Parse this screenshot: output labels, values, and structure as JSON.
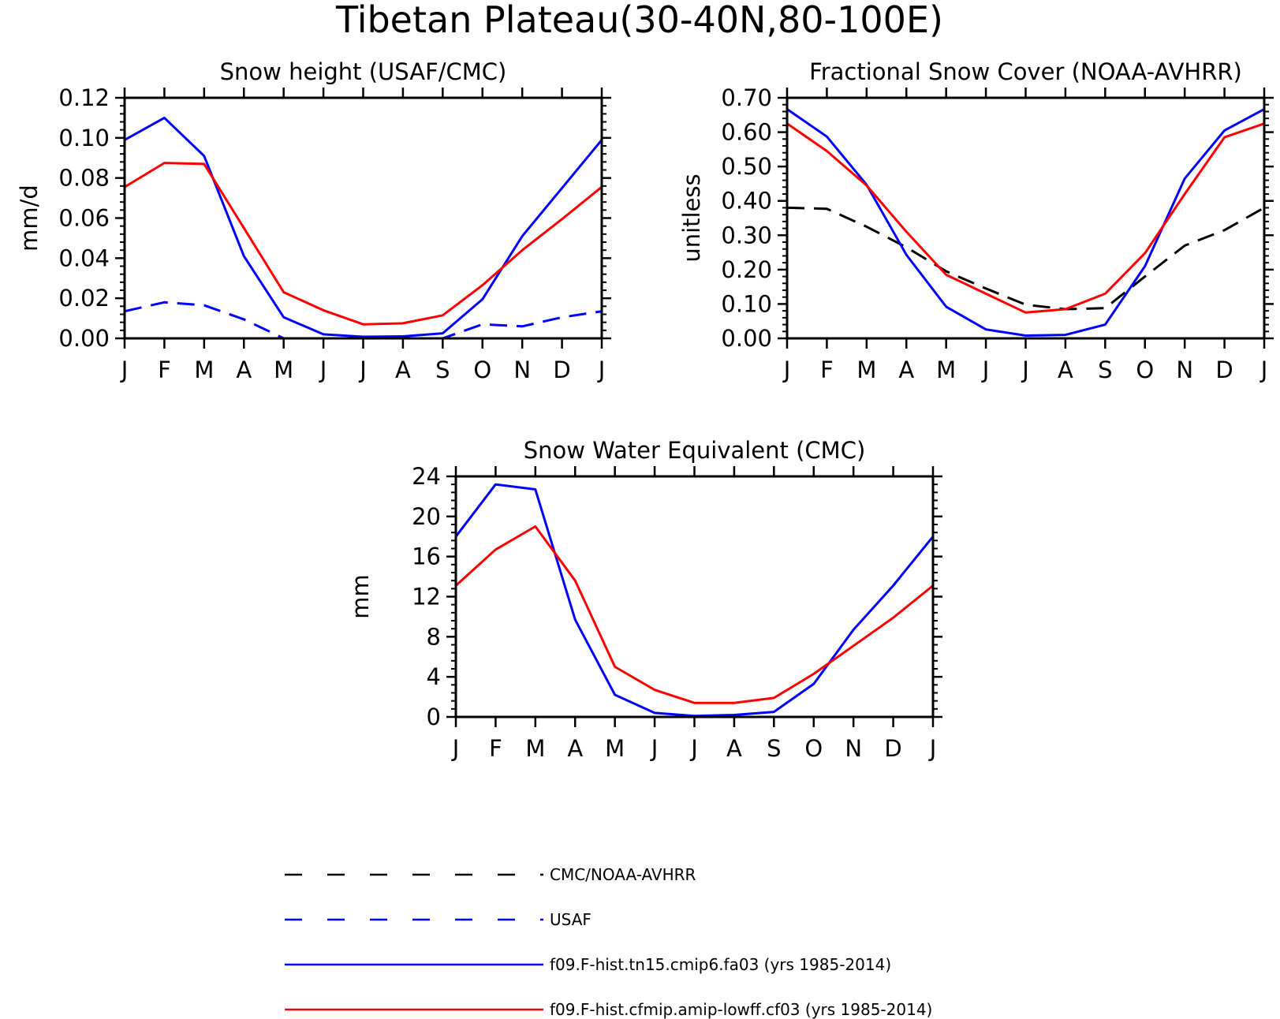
{
  "figure_title": "Tibetan Plateau(30-40N,80-100E)",
  "month_labels": [
    "J",
    "F",
    "M",
    "A",
    "M",
    "J",
    "J",
    "A",
    "S",
    "O",
    "N",
    "D",
    "J"
  ],
  "colors": {
    "obs_black": "#000000",
    "obs_blue": "#0000ff",
    "model_blue": "#0000ff",
    "model_red": "#ff0000"
  },
  "legend": [
    {
      "label": "CMC/NOAA-AVHRR",
      "color": "#000000",
      "style": "dashed"
    },
    {
      "label": "USAF",
      "color": "#0000ff",
      "style": "dashed"
    },
    {
      "label": "f09.F-hist.tn15.cmip6.fa03 (yrs 1985-2014)",
      "color": "#0000ff",
      "style": "solid"
    },
    {
      "label": "f09.F-hist.cfmip.amip-lowff.cf03 (yrs 1985-2014)",
      "color": "#ff0000",
      "style": "solid"
    }
  ],
  "chart_data": [
    {
      "type": "line",
      "title": "Snow height (USAF/CMC)",
      "xlabel": "",
      "ylabel": "mm/d",
      "ylim": [
        0,
        0.12
      ],
      "yticks": [
        "0.00",
        "0.02",
        "0.04",
        "0.06",
        "0.08",
        "0.10",
        "0.12"
      ],
      "ytick_values": [
        0,
        0.02,
        0.04,
        0.06,
        0.08,
        0.1,
        0.12
      ],
      "grid": false,
      "x": [
        "J",
        "F",
        "M",
        "A",
        "M",
        "J",
        "J",
        "A",
        "S",
        "O",
        "N",
        "D",
        "J"
      ],
      "series": [
        {
          "name": "CMC/NOAA-AVHRR",
          "color": "#000000",
          "dashed": true,
          "values": [
            0,
            0,
            0,
            0,
            0,
            0,
            0,
            0,
            0,
            0,
            0,
            0,
            0
          ]
        },
        {
          "name": "USAF",
          "color": "#0000ff",
          "dashed": true,
          "values": [
            0.0135,
            0.018,
            0.0165,
            0.0095,
            0.0,
            0.0,
            0.0,
            0.0,
            0.0,
            0.007,
            0.006,
            0.0105,
            0.0135
          ]
        },
        {
          "name": "f09.F-hist.tn15.cmip6.fa03 (yrs 1985-2014)",
          "color": "#0000ff",
          "dashed": false,
          "values": [
            0.099,
            0.11,
            0.091,
            0.041,
            0.0105,
            0.002,
            0.0008,
            0.001,
            0.0025,
            0.0195,
            0.051,
            0.075,
            0.099
          ]
        },
        {
          "name": "f09.F-hist.cfmip.amip-lowff.cf03 (yrs 1985-2014)",
          "color": "#ff0000",
          "dashed": false,
          "values": [
            0.0755,
            0.0875,
            0.087,
            0.055,
            0.023,
            0.014,
            0.007,
            0.0075,
            0.0115,
            0.0265,
            0.044,
            0.0595,
            0.0755
          ]
        }
      ]
    },
    {
      "type": "line",
      "title": "Fractional Snow Cover (NOAA-AVHRR)",
      "xlabel": "",
      "ylabel": "unitless",
      "ylim": [
        0,
        0.7
      ],
      "yticks": [
        "0.00",
        "0.10",
        "0.20",
        "0.30",
        "0.40",
        "0.50",
        "0.60",
        "0.70"
      ],
      "ytick_values": [
        0,
        0.1,
        0.2,
        0.3,
        0.4,
        0.5,
        0.6,
        0.7
      ],
      "grid": false,
      "x": [
        "J",
        "F",
        "M",
        "A",
        "M",
        "J",
        "J",
        "A",
        "S",
        "O",
        "N",
        "D",
        "J"
      ],
      "series": [
        {
          "name": "CMC/NOAA-AVHRR",
          "color": "#000000",
          "dashed": true,
          "values": [
            0.38,
            0.377,
            0.325,
            0.265,
            0.195,
            0.145,
            0.098,
            0.085,
            0.088,
            0.18,
            0.27,
            0.315,
            0.38
          ]
        },
        {
          "name": "f09.F-hist.tn15.cmip6.fa03 (yrs 1985-2014)",
          "color": "#0000ff",
          "dashed": false,
          "values": [
            0.667,
            0.587,
            0.447,
            0.243,
            0.092,
            0.026,
            0.008,
            0.01,
            0.04,
            0.21,
            0.465,
            0.605,
            0.667
          ]
        },
        {
          "name": "f09.F-hist.cfmip.amip-lowff.cf03 (yrs 1985-2014)",
          "color": "#ff0000",
          "dashed": false,
          "values": [
            0.625,
            0.545,
            0.445,
            0.31,
            0.185,
            0.13,
            0.075,
            0.085,
            0.13,
            0.248,
            0.42,
            0.585,
            0.625
          ]
        }
      ]
    },
    {
      "type": "line",
      "title": "Snow Water Equivalent (CMC)",
      "xlabel": "",
      "ylabel": "mm",
      "ylim": [
        0,
        24
      ],
      "yticks": [
        "0",
        "4",
        "8",
        "12",
        "16",
        "20",
        "24"
      ],
      "ytick_values": [
        0,
        4,
        8,
        12,
        16,
        20,
        24
      ],
      "grid": false,
      "x": [
        "J",
        "F",
        "M",
        "A",
        "M",
        "J",
        "J",
        "A",
        "S",
        "O",
        "N",
        "D",
        "J"
      ],
      "series": [
        {
          "name": "CMC/NOAA-AVHRR",
          "color": "#000000",
          "dashed": true,
          "values": [
            0,
            0,
            0,
            0,
            0,
            0,
            0,
            0,
            0,
            0,
            0,
            0,
            0
          ]
        },
        {
          "name": "f09.F-hist.tn15.cmip6.fa03 (yrs 1985-2014)",
          "color": "#0000ff",
          "dashed": false,
          "values": [
            18.0,
            23.2,
            22.7,
            9.7,
            2.2,
            0.4,
            0.1,
            0.2,
            0.5,
            3.3,
            8.7,
            13.1,
            18.0
          ]
        },
        {
          "name": "f09.F-hist.cfmip.amip-lowff.cf03 (yrs 1985-2014)",
          "color": "#ff0000",
          "dashed": false,
          "values": [
            13.1,
            16.7,
            19.0,
            13.6,
            5.0,
            2.7,
            1.4,
            1.4,
            1.9,
            4.3,
            7.1,
            9.9,
            13.1
          ]
        }
      ]
    }
  ]
}
